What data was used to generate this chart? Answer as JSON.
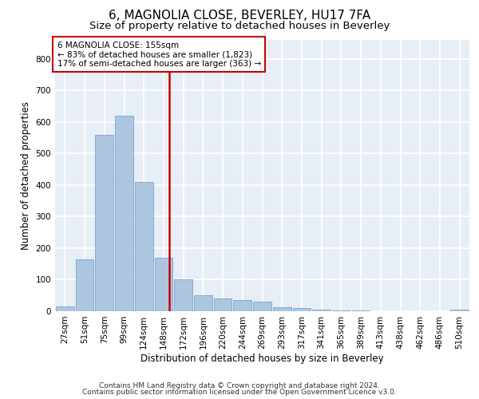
{
  "title": "6, MAGNOLIA CLOSE, BEVERLEY, HU17 7FA",
  "subtitle": "Size of property relative to detached houses in Beverley",
  "xlabel": "Distribution of detached houses by size in Beverley",
  "ylabel": "Number of detached properties",
  "bin_labels": [
    "27sqm",
    "51sqm",
    "75sqm",
    "99sqm",
    "124sqm",
    "148sqm",
    "172sqm",
    "196sqm",
    "220sqm",
    "244sqm",
    "269sqm",
    "293sqm",
    "317sqm",
    "341sqm",
    "365sqm",
    "389sqm",
    "413sqm",
    "438sqm",
    "462sqm",
    "486sqm",
    "510sqm"
  ],
  "bar_heights": [
    15,
    165,
    560,
    620,
    410,
    170,
    100,
    50,
    40,
    35,
    30,
    12,
    10,
    5,
    3,
    2,
    1,
    1,
    1,
    1,
    5
  ],
  "bar_color": "#adc6e0",
  "bar_edgecolor": "#6699cc",
  "highlight_bin_index": 5,
  "highlight_color": "#cc0000",
  "property_size": 155,
  "annotation_line1": "6 MAGNOLIA CLOSE: 155sqm",
  "annotation_line2": "← 83% of detached houses are smaller (1,823)",
  "annotation_line3": "17% of semi-detached houses are larger (363) →",
  "ylim": [
    0,
    860
  ],
  "yticks": [
    0,
    100,
    200,
    300,
    400,
    500,
    600,
    700,
    800
  ],
  "background_color": "#e8eef5",
  "grid_color": "#ffffff",
  "footer_line1": "Contains HM Land Registry data © Crown copyright and database right 2024.",
  "footer_line2": "Contains public sector information licensed under the Open Government Licence v3.0.",
  "title_fontsize": 11,
  "subtitle_fontsize": 9.5,
  "axis_label_fontsize": 8.5,
  "tick_fontsize": 7.5,
  "annotation_fontsize": 7.5,
  "footer_fontsize": 6.5
}
